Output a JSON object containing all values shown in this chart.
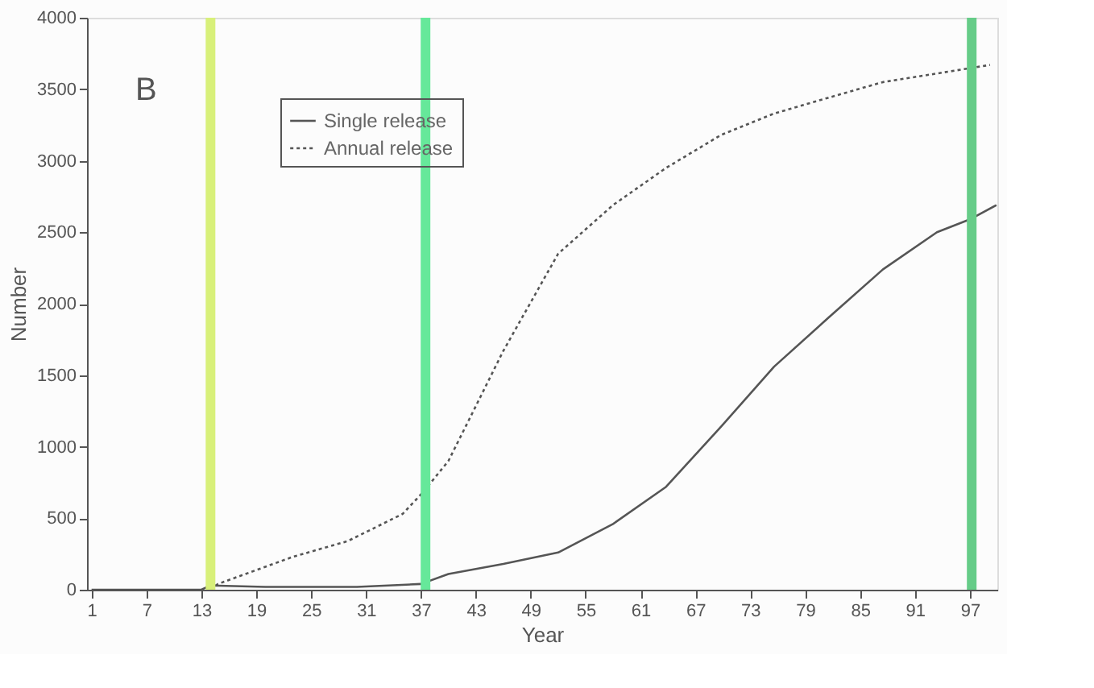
{
  "chart_data": {
    "type": "line",
    "xlabel": "Year",
    "ylabel": "Number",
    "annotations": [
      "B"
    ],
    "xlim": [
      0.5,
      100
    ],
    "xticks": [
      1,
      7,
      13,
      19,
      25,
      31,
      37,
      43,
      49,
      55,
      61,
      67,
      73,
      79,
      85,
      91,
      97
    ],
    "ylim": [
      0,
      4000
    ],
    "yticks": [
      0,
      500,
      1000,
      1500,
      2000,
      2500,
      3000,
      3500,
      4000
    ],
    "grid": false,
    "legend": "top left",
    "marker": "none",
    "series": [
      {
        "name": "Single release",
        "color": "#555555",
        "line_style": "solid",
        "x": [
          1,
          13,
          14,
          20,
          30,
          37,
          40,
          46,
          52,
          58,
          63.8,
          69.8,
          75.6,
          81.5,
          87.5,
          93.4,
          97,
          99.9
        ],
        "values": [
          0,
          0,
          30,
          20,
          20,
          40,
          110,
          180,
          260,
          460,
          720,
          1140,
          1560,
          1900,
          2240,
          2500,
          2590,
          2690
        ]
      },
      {
        "name": "Annual release",
        "color": "#555555",
        "line_style": "dotted",
        "x": [
          14,
          14.8,
          23,
          29,
          35,
          37.2,
          40,
          42.5,
          46,
          52,
          58,
          63.8,
          69.8,
          75.6,
          81.5,
          87.5,
          93.4,
          99.2
        ],
        "values": [
          0,
          40,
          230,
          340,
          530,
          680,
          900,
          1220,
          1670,
          2350,
          2690,
          2950,
          3180,
          3330,
          3440,
          3550,
          3610,
          3670
        ]
      }
    ],
    "ref_lines": [
      {
        "axis": "x",
        "value": 14,
        "color": "#d8f07a"
      },
      {
        "axis": "x",
        "value": 37.5,
        "color": "#66e89a"
      },
      {
        "axis": "x",
        "value": 97.2,
        "color": "#66cc88"
      }
    ]
  }
}
